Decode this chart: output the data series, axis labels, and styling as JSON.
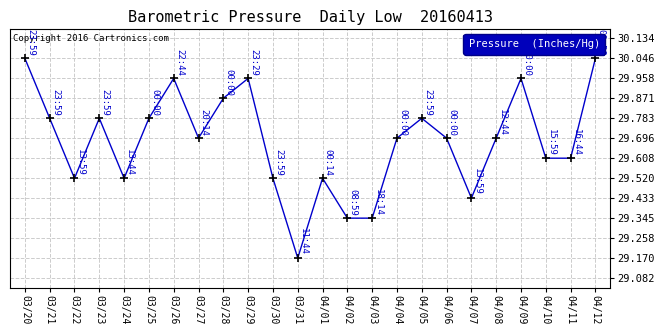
{
  "title": "Barometric Pressure  Daily Low  20160413",
  "ylabel": "Pressure  (Inches/Hg)",
  "copyright": "Copyright 2016 Cartronics.com",
  "background_color": "#ffffff",
  "plot_bg_color": "#ffffff",
  "line_color": "#0000cc",
  "marker_color": "#000000",
  "label_color": "#0000cc",
  "legend_bg": "#0000bb",
  "legend_fg": "#ffffff",
  "dates": [
    "03/20",
    "03/21",
    "03/22",
    "03/23",
    "03/24",
    "03/25",
    "03/26",
    "03/27",
    "03/28",
    "03/29",
    "03/30",
    "03/31",
    "04/01",
    "04/02",
    "04/03",
    "04/04",
    "04/05",
    "04/06",
    "04/07",
    "04/08",
    "04/09",
    "04/10",
    "04/11",
    "04/12"
  ],
  "values": [
    30.046,
    29.783,
    29.52,
    29.783,
    29.52,
    29.783,
    29.958,
    29.696,
    29.871,
    29.958,
    29.52,
    29.17,
    29.52,
    29.345,
    29.345,
    29.696,
    29.783,
    29.696,
    29.433,
    29.696,
    29.958,
    29.608,
    29.608,
    30.046
  ],
  "point_labels": [
    "23:59",
    "23:59",
    "13:59",
    "23:59",
    "13:44",
    "00:00",
    "22:44",
    "20:14",
    "00:00",
    "23:29",
    "23:59",
    "11:44",
    "00:14",
    "08:59",
    "18:14",
    "00:00",
    "23:59",
    "00:00",
    "13:59",
    "12:44",
    "00:00",
    "15:59",
    "16:44",
    "00:59"
  ],
  "yticks": [
    29.082,
    29.17,
    29.258,
    29.345,
    29.433,
    29.52,
    29.608,
    29.696,
    29.783,
    29.871,
    29.958,
    30.046,
    30.134
  ],
  "ylim": [
    29.04,
    30.175
  ],
  "grid_color": "#cccccc"
}
